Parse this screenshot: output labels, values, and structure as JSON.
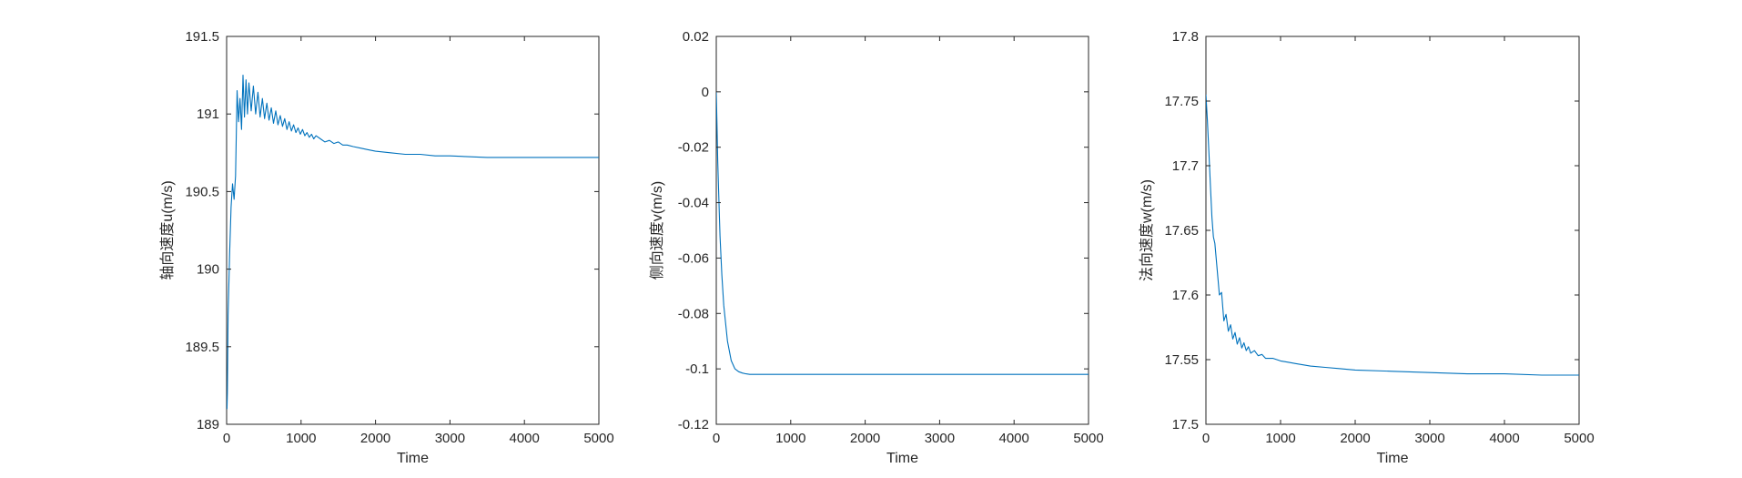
{
  "chart_data": [
    {
      "type": "line",
      "title": "",
      "xlabel": "Time",
      "ylabel": "轴向速度u(m/s)",
      "xlim": [
        0,
        5000
      ],
      "ylim": [
        189,
        191.5
      ],
      "xticks": [
        0,
        1000,
        2000,
        3000,
        4000,
        5000
      ],
      "xtick_labels": [
        "0",
        "1000",
        "2000",
        "3000",
        "4000",
        "5000"
      ],
      "yticks": [
        189,
        189.5,
        190,
        190.5,
        191,
        191.5
      ],
      "ytick_labels": [
        "189",
        "189.5",
        "190",
        "190.5",
        "191",
        "191.5"
      ],
      "color": "#0072BD",
      "grid": false,
      "series": [
        {
          "x": [
            0,
            5,
            10,
            20,
            40,
            60,
            80,
            100,
            120,
            140,
            160,
            180,
            200,
            220,
            240,
            260,
            280,
            300,
            330,
            360,
            390,
            420,
            450,
            480,
            510,
            540,
            570,
            600,
            630,
            660,
            690,
            720,
            750,
            780,
            810,
            840,
            870,
            900,
            930,
            960,
            990,
            1020,
            1050,
            1080,
            1110,
            1140,
            1170,
            1200,
            1260,
            1320,
            1380,
            1440,
            1500,
            1560,
            1620,
            1700,
            1800,
            1900,
            2000,
            2200,
            2400,
            2600,
            2800,
            3000,
            3500,
            4000,
            4500,
            5000
          ],
          "y": [
            189.15,
            189.1,
            189.2,
            189.7,
            190.1,
            190.4,
            190.55,
            190.45,
            190.6,
            191.15,
            190.95,
            191.1,
            190.9,
            191.25,
            190.98,
            191.22,
            191.0,
            191.2,
            191.02,
            191.18,
            191.0,
            191.14,
            190.98,
            191.1,
            190.97,
            191.07,
            190.96,
            191.04,
            190.94,
            191.02,
            190.93,
            190.99,
            190.92,
            190.97,
            190.9,
            190.95,
            190.89,
            190.93,
            190.88,
            190.91,
            190.87,
            190.9,
            190.86,
            190.88,
            190.85,
            190.87,
            190.84,
            190.86,
            190.84,
            190.82,
            190.83,
            190.81,
            190.82,
            190.8,
            190.8,
            190.79,
            190.78,
            190.77,
            190.76,
            190.75,
            190.74,
            190.74,
            190.73,
            190.73,
            190.72,
            190.72,
            190.72,
            190.72
          ]
        }
      ]
    },
    {
      "type": "line",
      "title": "",
      "xlabel": "Time",
      "ylabel": "侧向速度v(m/s)",
      "xlim": [
        0,
        5000
      ],
      "ylim": [
        -0.12,
        0.02
      ],
      "xticks": [
        0,
        1000,
        2000,
        3000,
        4000,
        5000
      ],
      "xtick_labels": [
        "0",
        "1000",
        "2000",
        "3000",
        "4000",
        "5000"
      ],
      "yticks": [
        -0.12,
        -0.1,
        -0.08,
        -0.06,
        -0.04,
        -0.02,
        0,
        0.02
      ],
      "ytick_labels": [
        "-0.12",
        "-0.1",
        "-0.08",
        "-0.06",
        "-0.04",
        "-0.02",
        "0",
        "0.02"
      ],
      "color": "#0072BD",
      "grid": false,
      "series": [
        {
          "x": [
            0,
            10,
            20,
            30,
            50,
            75,
            100,
            150,
            200,
            250,
            300,
            350,
            400,
            450,
            500,
            600,
            800,
            1000,
            2000,
            3000,
            4000,
            5000
          ],
          "y": [
            0.0,
            -0.012,
            -0.025,
            -0.035,
            -0.052,
            -0.066,
            -0.077,
            -0.09,
            -0.097,
            -0.1,
            -0.101,
            -0.1015,
            -0.1018,
            -0.102,
            -0.102,
            -0.102,
            -0.102,
            -0.102,
            -0.102,
            -0.102,
            -0.102,
            -0.102
          ]
        }
      ]
    },
    {
      "type": "line",
      "title": "",
      "xlabel": "Time",
      "ylabel": "法向速度w(m/s)",
      "xlim": [
        0,
        5000
      ],
      "ylim": [
        17.5,
        17.8
      ],
      "xticks": [
        0,
        1000,
        2000,
        3000,
        4000,
        5000
      ],
      "xtick_labels": [
        "0",
        "1000",
        "2000",
        "3000",
        "4000",
        "5000"
      ],
      "yticks": [
        17.5,
        17.55,
        17.6,
        17.65,
        17.7,
        17.75,
        17.8
      ],
      "ytick_labels": [
        "17.5",
        "17.55",
        "17.6",
        "17.65",
        "17.7",
        "17.75",
        "17.8"
      ],
      "color": "#0072BD",
      "grid": false,
      "series": [
        {
          "x": [
            0,
            20,
            40,
            60,
            80,
            100,
            120,
            150,
            180,
            210,
            240,
            270,
            300,
            330,
            360,
            390,
            420,
            450,
            480,
            510,
            540,
            570,
            600,
            650,
            700,
            750,
            800,
            900,
            1000,
            1100,
            1200,
            1400,
            1600,
            1800,
            2000,
            2500,
            3000,
            3500,
            4000,
            4500,
            5000
          ],
          "y": [
            17.755,
            17.735,
            17.71,
            17.685,
            17.66,
            17.645,
            17.64,
            17.62,
            17.6,
            17.602,
            17.58,
            17.585,
            17.572,
            17.577,
            17.566,
            17.571,
            17.562,
            17.567,
            17.559,
            17.563,
            17.557,
            17.56,
            17.555,
            17.557,
            17.553,
            17.554,
            17.551,
            17.551,
            17.549,
            17.548,
            17.547,
            17.545,
            17.544,
            17.543,
            17.542,
            17.541,
            17.54,
            17.539,
            17.539,
            17.538,
            17.538
          ]
        }
      ]
    }
  ]
}
